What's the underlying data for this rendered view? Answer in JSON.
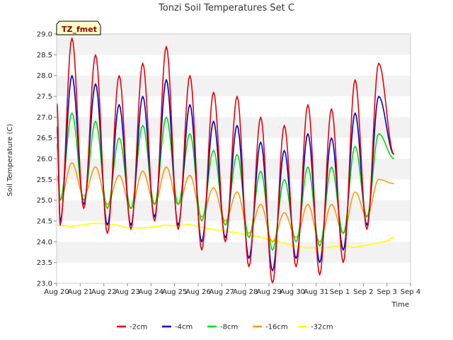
{
  "chart_data": {
    "type": "line",
    "title": "Tonzi Soil Temperatures Set C",
    "xlabel": "Time",
    "ylabel": "Soil Temperature (C)",
    "ylim": [
      23.0,
      29.0
    ],
    "xlim": [
      "Aug 20",
      "Sep 4"
    ],
    "yticks": [
      "23.0",
      "23.5",
      "24.0",
      "24.5",
      "25.0",
      "25.5",
      "26.0",
      "26.5",
      "27.0",
      "27.5",
      "28.0",
      "28.5",
      "29.0"
    ],
    "xticks": [
      "Aug 20",
      "Aug 21",
      "Aug 22",
      "Aug 23",
      "Aug 24",
      "Aug 25",
      "Aug 26",
      "Aug 27",
      "Aug 28",
      "Aug 29",
      "Aug 30",
      "Aug 31",
      "Sep 1",
      "Sep 2",
      "Sep 3",
      "Sep 4"
    ],
    "grid": "horizontal bands",
    "legend_position": "bottom",
    "badge": "TZ_fmet",
    "series": [
      {
        "name": "-2cm",
        "color": "#e8000b",
        "daily_min": [
          24.4,
          24.8,
          24.2,
          24.3,
          24.5,
          24.3,
          23.8,
          24.0,
          23.4,
          23.0,
          23.4,
          23.2,
          23.5,
          24.3
        ],
        "daily_max": [
          28.9,
          28.5,
          28.0,
          28.3,
          28.7,
          28.0,
          27.6,
          27.5,
          27.0,
          26.8,
          27.3,
          27.2,
          27.9,
          28.3
        ],
        "end_value": 26.1
      },
      {
        "name": "-4cm",
        "color": "#0000cc",
        "daily_min": [
          24.5,
          24.9,
          24.4,
          24.4,
          24.6,
          24.4,
          24.0,
          24.1,
          23.6,
          23.3,
          23.6,
          23.5,
          23.8,
          24.4
        ],
        "daily_max": [
          28.0,
          27.8,
          27.3,
          27.5,
          27.9,
          27.3,
          26.9,
          26.8,
          26.4,
          26.2,
          26.6,
          26.5,
          27.1,
          27.5
        ],
        "end_value": 26.1
      },
      {
        "name": "-8cm",
        "color": "#00dd00",
        "daily_min": [
          25.0,
          25.0,
          24.8,
          24.8,
          24.9,
          24.9,
          24.5,
          24.4,
          24.1,
          23.8,
          24.0,
          23.9,
          24.2,
          24.6
        ],
        "daily_max": [
          27.1,
          26.9,
          26.5,
          26.8,
          27.0,
          26.6,
          26.2,
          26.1,
          25.7,
          25.5,
          25.8,
          25.8,
          26.3,
          26.6
        ],
        "end_value": 26.0
      },
      {
        "name": "-16cm",
        "color": "#ff9900",
        "daily_min": [
          25.0,
          25.1,
          24.9,
          24.8,
          24.9,
          24.9,
          24.6,
          24.5,
          24.2,
          24.0,
          24.1,
          24.0,
          24.2,
          24.6
        ],
        "daily_max": [
          25.9,
          25.8,
          25.6,
          25.7,
          25.8,
          25.6,
          25.3,
          25.2,
          24.9,
          24.7,
          24.9,
          24.9,
          25.2,
          25.5
        ],
        "end_value": 25.4
      },
      {
        "name": "-32cm",
        "color": "#ffff00",
        "x": [
          0,
          0.6,
          1.0,
          1.6,
          2.0,
          2.6,
          3.0,
          3.6,
          4.0,
          4.6,
          5.0,
          5.6,
          6.0,
          6.6,
          7.0,
          7.6,
          8.0,
          8.6,
          9.0,
          9.6,
          10.0,
          10.6,
          11.0,
          11.6,
          12.0,
          12.6,
          13.0,
          13.6,
          14.0,
          14.3
        ],
        "values": [
          24.4,
          24.37,
          24.4,
          24.45,
          24.44,
          24.4,
          24.34,
          24.33,
          24.35,
          24.4,
          24.38,
          24.42,
          24.37,
          24.3,
          24.27,
          24.22,
          24.17,
          24.12,
          24.05,
          23.98,
          23.9,
          23.86,
          23.85,
          23.87,
          23.9,
          23.86,
          23.9,
          23.97,
          24.02,
          24.12
        ]
      }
    ]
  }
}
